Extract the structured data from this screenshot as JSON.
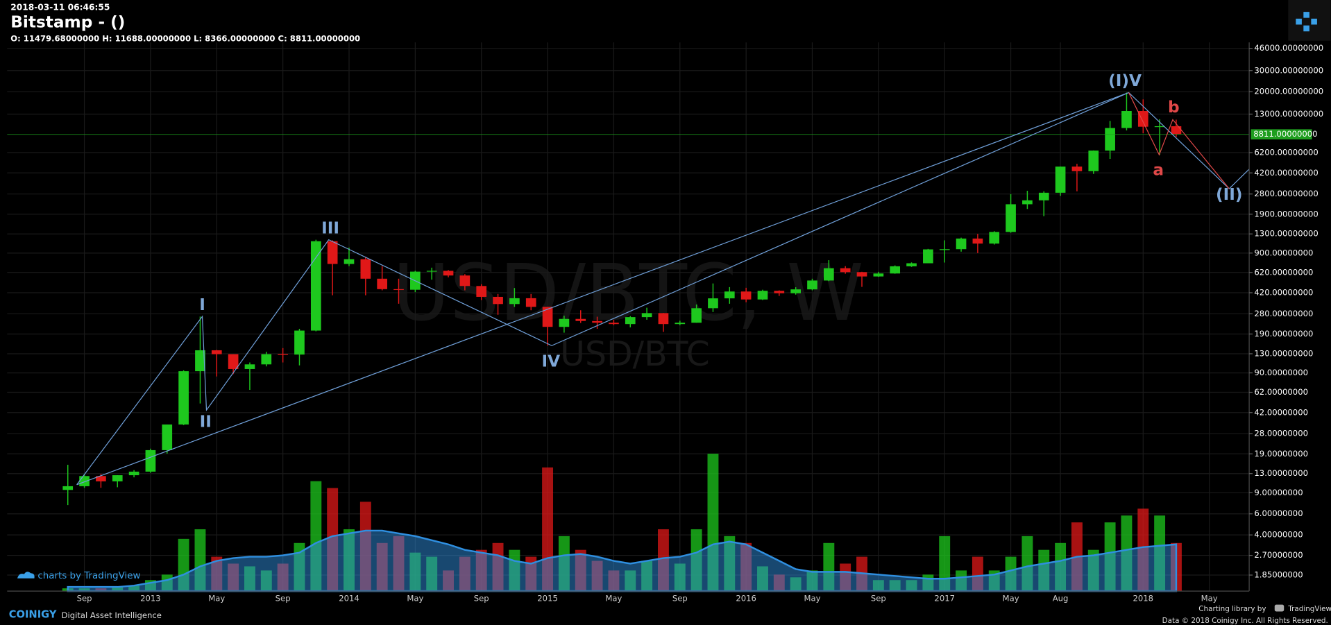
{
  "header": {
    "timestamp": "2018-03-11 06:46:55",
    "title": "Bitstamp -  ()",
    "ohlc": "O: 11479.68000000 H: 11688.00000000 L: 8366.00000000 C: 8811.00000000"
  },
  "chart_data": {
    "type": "candlestick",
    "watermark": "USD/BTC, W",
    "watermark_sub": "USD/BTC",
    "categories": [
      null,
      "Sep",
      null,
      null,
      null,
      "2013",
      null,
      null,
      null,
      "May",
      null,
      null,
      null,
      "Sep",
      null,
      null,
      null,
      "2014",
      null,
      null,
      null,
      "May",
      null,
      null,
      null,
      "Sep",
      null,
      null,
      null,
      "2015",
      null,
      null,
      null,
      "May",
      null,
      null,
      null,
      "Sep",
      null,
      null,
      null,
      "2016",
      null,
      null,
      null,
      "May",
      null,
      null,
      null,
      "Sep",
      null,
      null,
      null,
      "2017",
      null,
      null,
      null,
      "May",
      null,
      null,
      "Aug",
      null,
      null,
      null,
      null,
      "2018",
      null,
      null,
      null,
      "May",
      null,
      null
    ],
    "open": [
      9.5,
      10.2,
      12.4,
      11.2,
      12.6,
      13.5,
      20.4,
      33.4,
      93,
      139,
      129,
      97,
      106,
      129,
      128,
      203,
      1130,
      730,
      800,
      550,
      450,
      445,
      630,
      640,
      585,
      478,
      388,
      338,
      378,
      320,
      218,
      254,
      244,
      236,
      230,
      263,
      284,
      230,
      236,
      312,
      377,
      430,
      369,
      436,
      416,
      448,
      531,
      673,
      624,
      574,
      608,
      698,
      740,
      966,
      970,
      1190,
      1080,
      1350,
      2300,
      2480,
      2870,
      4740,
      4340,
      6450,
      9950,
      13800,
      10200,
      10300,
      null,
      null,
      null,
      null
    ],
    "high": [
      15.4,
      12.9,
      12.9,
      12.6,
      13.9,
      21,
      33.4,
      94.5,
      266,
      140,
      129,
      110,
      135,
      145,
      210,
      1163,
      1150,
      1000,
      840,
      700,
      550,
      640,
      680,
      650,
      600,
      495,
      410,
      460,
      410,
      320,
      270,
      300,
      265,
      250,
      268,
      315,
      285,
      245,
      335,
      502,
      468,
      462,
      445,
      440,
      467,
      550,
      785,
      700,
      628,
      628,
      710,
      752,
      975,
      1150,
      1210,
      1300,
      1370,
      2790,
      2980,
      2950,
      4750,
      5000,
      6470,
      11400,
      19666,
      17250,
      11780,
      11688,
      null,
      null,
      null,
      null
    ],
    "low": [
      7.1,
      9.9,
      9.9,
      10,
      12.1,
      13.2,
      19.1,
      33,
      50,
      84,
      88,
      65,
      102,
      110,
      104,
      200,
      400,
      700,
      400,
      440,
      340,
      425,
      540,
      565,
      440,
      365,
      275,
      320,
      300,
      152,
      195,
      235,
      210,
      225,
      216,
      250,
      198,
      225,
      236,
      290,
      340,
      350,
      365,
      395,
      405,
      440,
      525,
      605,
      470,
      570,
      605,
      690,
      740,
      750,
      925,
      900,
      1060,
      1330,
      2100,
      1830,
      2700,
      2950,
      4120,
      5500,
      9500,
      9000,
      5950,
      8366,
      null,
      null,
      null,
      null
    ],
    "close": [
      10.2,
      12.4,
      11.2,
      12.6,
      13.5,
      20.4,
      33.4,
      93,
      139,
      129,
      97,
      106,
      129,
      128,
      203,
      1130,
      730,
      800,
      550,
      450,
      445,
      630,
      640,
      585,
      478,
      388,
      338,
      378,
      320,
      218,
      254,
      244,
      236,
      230,
      263,
      284,
      230,
      236,
      312,
      377,
      430,
      369,
      436,
      416,
      448,
      531,
      673,
      624,
      574,
      608,
      698,
      740,
      966,
      970,
      1190,
      1080,
      1350,
      2300,
      2480,
      2870,
      4740,
      4340,
      6450,
      9950,
      13800,
      10200,
      10300,
      8811,
      null,
      null,
      null,
      null
    ],
    "volume": [
      2,
      2,
      2,
      3,
      4,
      8,
      12,
      38,
      45,
      25,
      20,
      18,
      15,
      20,
      35,
      80,
      75,
      45,
      65,
      35,
      40,
      28,
      25,
      15,
      25,
      30,
      35,
      30,
      25,
      90,
      40,
      30,
      22,
      15,
      15,
      22,
      45,
      20,
      45,
      100,
      40,
      35,
      18,
      12,
      10,
      15,
      35,
      20,
      25,
      8,
      8,
      8,
      12,
      40,
      15,
      25,
      15,
      25,
      40,
      30,
      35,
      50,
      30,
      50,
      55,
      60,
      55,
      35,
      null,
      null,
      null,
      null
    ],
    "volume_ma": [
      3,
      3,
      3,
      3,
      4,
      6,
      8,
      12,
      18,
      22,
      24,
      25,
      25,
      26,
      28,
      35,
      40,
      42,
      44,
      44,
      42,
      40,
      37,
      34,
      30,
      28,
      26,
      22,
      20,
      24,
      26,
      27,
      25,
      22,
      20,
      22,
      24,
      25,
      28,
      34,
      36,
      34,
      28,
      22,
      16,
      14,
      14,
      14,
      13,
      12,
      11,
      10,
      9,
      9,
      10,
      11,
      12,
      15,
      18,
      20,
      22,
      25,
      26,
      28,
      30,
      32,
      33,
      34,
      null,
      null,
      null,
      null
    ],
    "volume_lim": [
      0,
      100
    ],
    "ylim": [
      1.36,
      51560
    ],
    "log_scale": true,
    "grid": true,
    "yticks": [
      {
        "value": 46000,
        "label": "46000.00000000"
      },
      {
        "value": 30000,
        "label": "30000.00000000"
      },
      {
        "value": 20000,
        "label": "20000.00000000"
      },
      {
        "value": 13000,
        "label": "13000.00000000"
      },
      {
        "value": 6200,
        "label": "6200.00000000"
      },
      {
        "value": 4200,
        "label": "4200.00000000"
      },
      {
        "value": 2800,
        "label": "2800.00000000"
      },
      {
        "value": 1900,
        "label": "1900.00000000"
      },
      {
        "value": 1300,
        "label": "1300.00000000"
      },
      {
        "value": 900,
        "label": "900.00000000"
      },
      {
        "value": 620,
        "label": "620.00000000"
      },
      {
        "value": 420,
        "label": "420.00000000"
      },
      {
        "value": 280,
        "label": "280.00000000"
      },
      {
        "value": 190,
        "label": "190.00000000"
      },
      {
        "value": 130,
        "label": "130.00000000"
      },
      {
        "value": 90,
        "label": "90.00000000"
      },
      {
        "value": 62,
        "label": "62.00000000"
      },
      {
        "value": 42,
        "label": "42.00000000"
      },
      {
        "value": 28,
        "label": "28.00000000"
      },
      {
        "value": 19,
        "label": "19.00000000"
      },
      {
        "value": 13,
        "label": "13.00000000"
      },
      {
        "value": 9,
        "label": "9.00000000"
      },
      {
        "value": 6,
        "label": "6.00000000"
      },
      {
        "value": 4,
        "label": "4.00000000"
      },
      {
        "value": 2.7,
        "label": "2.70000000"
      },
      {
        "value": 1.85,
        "label": "1.85000000"
      }
    ],
    "up_color": "#1ec81e",
    "down_color": "#e01818",
    "volume_ma_color": "#2f8fe0",
    "last_price": {
      "value": 8811,
      "label": "8811.00000000"
    },
    "last_price_color": "#1e9e1e",
    "wave_lines": [
      {
        "color": "#6f9fd8",
        "points": [
          {
            "x": 0.54,
            "y": 10.5
          },
          {
            "x": 8.13,
            "y": 266
          },
          {
            "x": 8.38,
            "y": 44
          },
          {
            "x": 15.77,
            "y": 1163
          },
          {
            "x": 29.25,
            "y": 152
          },
          {
            "x": 64.13,
            "y": 19666
          },
          {
            "x": 70.2,
            "y": 3100
          },
          {
            "x": 71.4,
            "y": 4500
          }
        ]
      },
      {
        "color": "#6f9fd8",
        "points": [
          {
            "x": 0.54,
            "y": 10.5
          },
          {
            "x": 64.13,
            "y": 19666
          }
        ]
      },
      {
        "color": "#e04848",
        "points": [
          {
            "x": 64.13,
            "y": 19666
          },
          {
            "x": 65.97,
            "y": 5950
          },
          {
            "x": 66.79,
            "y": 11700
          },
          {
            "x": 70.2,
            "y": 3100
          }
        ]
      }
    ],
    "wave_labels": [
      {
        "text": "I",
        "x": 8.13,
        "y": 329,
        "color": "#7fa8d8"
      },
      {
        "text": "II",
        "x": 8.33,
        "y": 34.8,
        "color": "#7fa8d8"
      },
      {
        "text": "III",
        "x": 15.87,
        "y": 1430,
        "color": "#7fa8d8"
      },
      {
        "text": "IV",
        "x": 29.2,
        "y": 110.6,
        "color": "#7fa8d8"
      },
      {
        "text": "(I)V",
        "x": 63.9,
        "y": 24350,
        "color": "#7fa8d8"
      },
      {
        "text": "(II)",
        "x": 70.2,
        "y": 2740,
        "color": "#7fa8d8"
      },
      {
        "text": "a",
        "x": 65.92,
        "y": 4400,
        "color": "#e04848"
      },
      {
        "text": "b",
        "x": 66.85,
        "y": 14700,
        "color": "#e04848"
      }
    ]
  },
  "footer": {
    "badge": "charts by TradingView",
    "brand": "COINIGY",
    "tagline": "Digital Asset Intelligence",
    "library": "Charting library by",
    "library_name": "TradingView",
    "copyright": "Data © 2018  Coinigy Inc. All Rights Reserved."
  }
}
